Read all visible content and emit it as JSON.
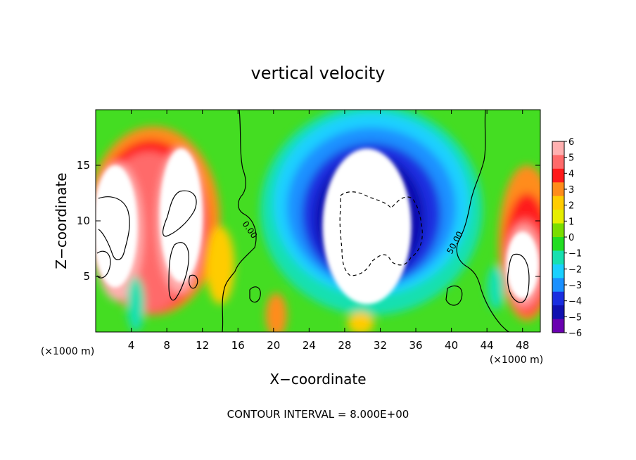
{
  "chart_data": {
    "type": "heatmap",
    "title": "vertical velocity",
    "xlabel": "X−coordinate",
    "ylabel": "Z−coordinate",
    "x_unit_left": "(×1000 m)",
    "x_unit_right": "(×1000 m)",
    "xlim": [
      0,
      50
    ],
    "ylim": [
      0,
      20
    ],
    "x_ticks": [
      4,
      8,
      12,
      16,
      20,
      24,
      28,
      32,
      36,
      40,
      44,
      48
    ],
    "y_ticks": [
      5,
      10,
      15
    ],
    "colorbar": {
      "levels": [
        6,
        5,
        4,
        3,
        2,
        1,
        0,
        -1,
        -2,
        -3,
        -4,
        -5,
        -6
      ],
      "labels": [
        "6",
        "5",
        "4",
        "3",
        "2",
        "1",
        "0",
        "−1",
        "−2",
        "−3",
        "−4",
        "−5",
        "−6"
      ],
      "colors": [
        "#ffb0b0",
        "#ff6a6a",
        "#ff1a1a",
        "#ff8c1a",
        "#ffcc00",
        "#e6ee00",
        "#7add00",
        "#22dd22",
        "#16e0b0",
        "#1ad0ff",
        "#1a90ff",
        "#1a2ee0",
        "#1010b0",
        "#6a00b0"
      ]
    },
    "contour_labels": [
      "0.00",
      "50.00"
    ],
    "footer": "CONTOUR INTERVAL = 8.000E+00",
    "features": [
      {
        "cx": 30.5,
        "cy": 9.5,
        "rx": 5.0,
        "ry": 7.0,
        "v": -7
      },
      {
        "cx": 2.2,
        "cy": 9.5,
        "rx": 2.5,
        "ry": 5.5,
        "v": 7
      },
      {
        "cx": 9.6,
        "cy": 10.5,
        "rx": 2.4,
        "ry": 6.0,
        "v": 7
      },
      {
        "cx": 48.0,
        "cy": 6.0,
        "rx": 1.8,
        "ry": 3.0,
        "v": 7
      }
    ]
  }
}
